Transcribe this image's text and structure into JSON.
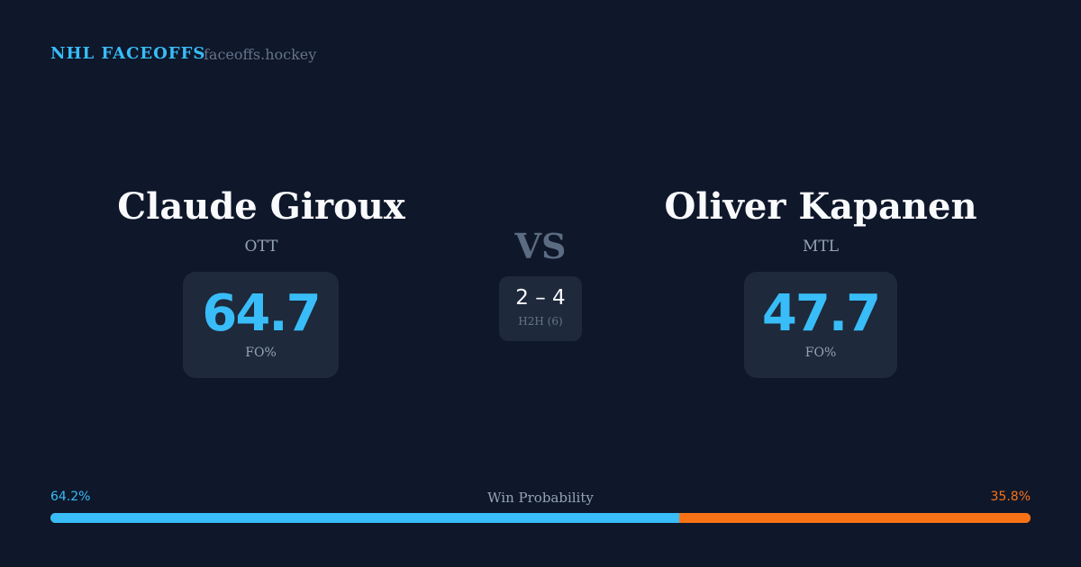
{
  "header": {
    "brand": "NHL FACEOFFS",
    "site": "faceoffs.hockey"
  },
  "left": {
    "name": "Claude Giroux",
    "team": "OTT",
    "fo_pct": "64.7",
    "fo_label": "FO%"
  },
  "right": {
    "name": "Oliver Kapanen",
    "team": "MTL",
    "fo_pct": "47.7",
    "fo_label": "FO%"
  },
  "vs": "VS",
  "h2h": {
    "score": "2 – 4",
    "label": "H2H (6)"
  },
  "win_probability": {
    "label": "Win Probability",
    "left_pct": "64.2%",
    "right_pct": "35.8%",
    "left_value": 64.2,
    "right_value": 35.8
  },
  "colors": {
    "left": "#38bdf8",
    "right": "#f97316",
    "background": "#0f172a",
    "card": "#1e293b"
  }
}
